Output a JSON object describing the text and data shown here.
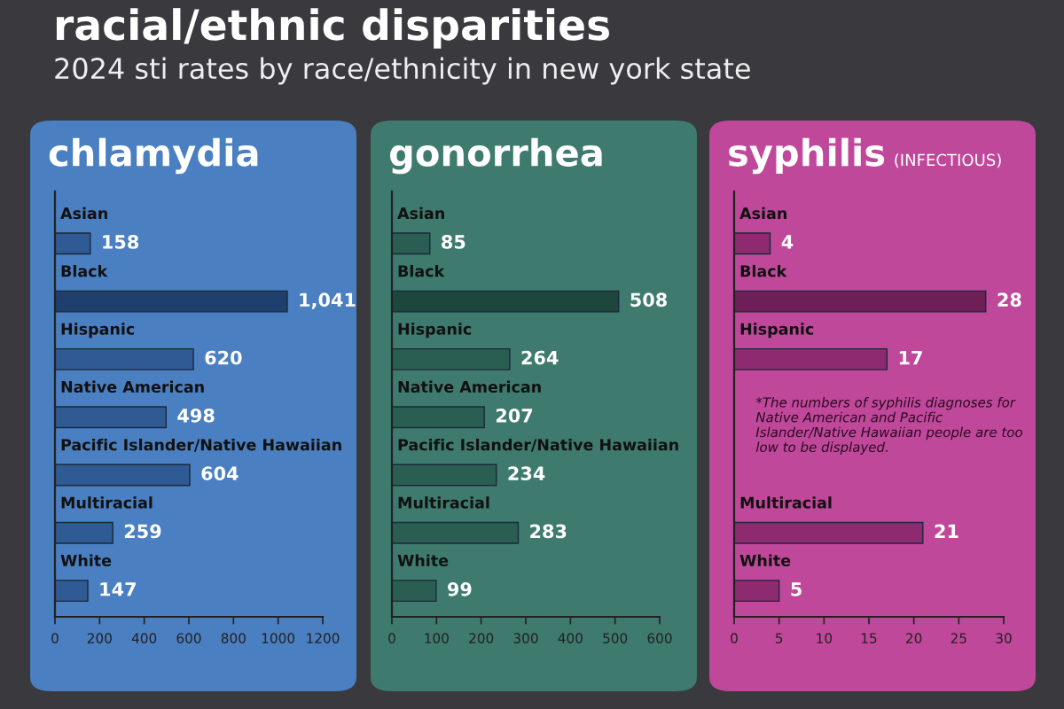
{
  "chart_data": [
    {
      "type": "other",
      "title": "racial/ethnic disparities",
      "subtitle": "2024 sti rates by race/ethnicity in new york state"
    },
    {
      "type": "bar",
      "orientation": "horizontal",
      "title": "chlamydia",
      "categories": [
        "Asian",
        "Black",
        "Hispanic",
        "Native American",
        "Pacific Islander/Native Hawaiian",
        "Multiracial",
        "White"
      ],
      "values": [
        158,
        1041,
        620,
        498,
        604,
        259,
        147
      ],
      "value_labels": [
        "158",
        "1,041",
        "620",
        "498",
        "604",
        "259",
        "147"
      ],
      "colors": [
        "#2f5a94",
        "#1f3f6e",
        "#2f5a94",
        "#2f5a94",
        "#2f5a94",
        "#2f5a94",
        "#2f5a94"
      ],
      "xlim": [
        0,
        1200
      ],
      "xticks": [
        0,
        200,
        400,
        600,
        800,
        1000,
        1200
      ],
      "grid": false,
      "legend": false
    },
    {
      "type": "bar",
      "orientation": "horizontal",
      "title": "gonorrhea",
      "categories": [
        "Asian",
        "Black",
        "Hispanic",
        "Native American",
        "Pacific Islander/Native Hawaiian",
        "Multiracial",
        "White"
      ],
      "values": [
        85,
        508,
        264,
        207,
        234,
        283,
        99
      ],
      "value_labels": [
        "85",
        "508",
        "264",
        "207",
        "234",
        "283",
        "99"
      ],
      "colors": [
        "#2b5e52",
        "#1d463d",
        "#2b5e52",
        "#2b5e52",
        "#2b5e52",
        "#2b5e52",
        "#2b5e52"
      ],
      "xlim": [
        0,
        600
      ],
      "xticks": [
        0,
        100,
        200,
        300,
        400,
        500,
        600
      ],
      "grid": false,
      "legend": false
    },
    {
      "type": "bar",
      "orientation": "horizontal",
      "title": "syphilis",
      "subtitle": "(INFECTIOUS)",
      "categories": [
        "Asian",
        "Black",
        "Hispanic",
        null,
        null,
        "Multiracial",
        "White"
      ],
      "values": [
        4,
        28,
        17,
        null,
        null,
        21,
        5
      ],
      "value_labels": [
        "4",
        "28",
        "17",
        null,
        null,
        "21",
        "5"
      ],
      "colors": [
        "#8e2a70",
        "#6e1f57",
        "#8e2a70",
        "#8e2a70",
        "#8e2a70",
        "#8e2a70",
        "#8e2a70"
      ],
      "xlim": [
        0,
        30
      ],
      "xticks": [
        0,
        5,
        10,
        15,
        20,
        25,
        30
      ],
      "grid": false,
      "legend": false,
      "annotations": [
        "*The numbers of syphilis diagnoses for Native American and Pacific Islander/Native Hawaiian people are too low to be displayed."
      ]
    }
  ]
}
